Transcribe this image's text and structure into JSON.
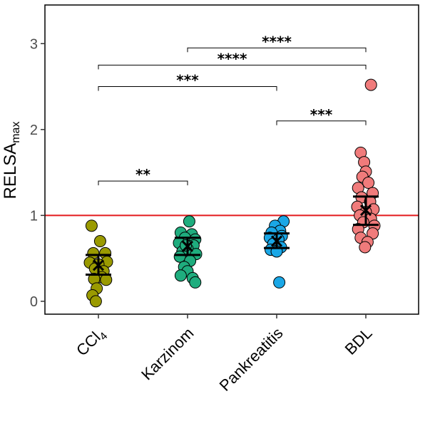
{
  "chart_data": {
    "type": "scatter",
    "subtype": "jitter-dot-plot-with-mean-sem",
    "title": "",
    "ylabel": "RELSA",
    "ylabel_subscript": "max",
    "categories": [
      {
        "main": "CCl",
        "sub": "4"
      },
      {
        "main": "Karzinom",
        "sub": ""
      },
      {
        "main": "Pankreatitis",
        "sub": ""
      },
      {
        "main": "BDL",
        "sub": ""
      }
    ],
    "ylim": [
      -0.15,
      3.45
    ],
    "yticks": [
      {
        "value": 0,
        "label": "0"
      },
      {
        "value": 1,
        "label": "1"
      },
      {
        "value": 2,
        "label": "2"
      },
      {
        "value": 3,
        "label": "3"
      }
    ],
    "reference_line": {
      "y": 1,
      "color": "#e31a1c"
    },
    "grid": false,
    "legend": "none",
    "series": [
      {
        "group": "CCl4",
        "color": "#9a9a00",
        "points": [
          {
            "dx": -0.08,
            "y": 0.88
          },
          {
            "dx": 0.02,
            "y": 0.7
          },
          {
            "dx": 0.08,
            "y": 0.56
          },
          {
            "dx": -0.06,
            "y": 0.56
          },
          {
            "dx": 0.1,
            "y": 0.46
          },
          {
            "dx": -0.1,
            "y": 0.45
          },
          {
            "dx": 0.0,
            "y": 0.43
          },
          {
            "dx": -0.04,
            "y": 0.38
          },
          {
            "dx": 0.06,
            "y": 0.35
          },
          {
            "dx": 0.04,
            "y": 0.28
          },
          {
            "dx": -0.05,
            "y": 0.26
          },
          {
            "dx": 0.09,
            "y": 0.25
          },
          {
            "dx": -0.02,
            "y": 0.15
          },
          {
            "dx": -0.07,
            "y": 0.07
          },
          {
            "dx": -0.03,
            "y": 0.0
          }
        ],
        "mean": 0.42,
        "err_low": 0.31,
        "err_high": 0.54
      },
      {
        "group": "Karzinom",
        "color": "#1fad7e",
        "points": [
          {
            "dx": 0.02,
            "y": 0.93
          },
          {
            "dx": -0.08,
            "y": 0.8
          },
          {
            "dx": 0.05,
            "y": 0.78
          },
          {
            "dx": -0.03,
            "y": 0.74
          },
          {
            "dx": 0.09,
            "y": 0.72
          },
          {
            "dx": -0.1,
            "y": 0.68
          },
          {
            "dx": 0.07,
            "y": 0.65
          },
          {
            "dx": 0.0,
            "y": 0.61
          },
          {
            "dx": -0.06,
            "y": 0.58
          },
          {
            "dx": 0.1,
            "y": 0.55
          },
          {
            "dx": -0.09,
            "y": 0.52
          },
          {
            "dx": 0.03,
            "y": 0.47
          },
          {
            "dx": -0.04,
            "y": 0.4
          },
          {
            "dx": 0.0,
            "y": 0.35
          },
          {
            "dx": -0.08,
            "y": 0.3
          },
          {
            "dx": 0.06,
            "y": 0.27
          },
          {
            "dx": 0.09,
            "y": 0.22
          },
          {
            "dx": -0.02,
            "y": 0.65
          }
        ],
        "mean": 0.64,
        "err_low": 0.54,
        "err_high": 0.74
      },
      {
        "group": "Pankreatitis",
        "color": "#1aa7e6",
        "points": [
          {
            "dx": 0.08,
            "y": 0.93
          },
          {
            "dx": -0.02,
            "y": 0.88
          },
          {
            "dx": 0.04,
            "y": 0.82
          },
          {
            "dx": -0.06,
            "y": 0.8
          },
          {
            "dx": 0.06,
            "y": 0.76
          },
          {
            "dx": -0.08,
            "y": 0.74
          },
          {
            "dx": 0.02,
            "y": 0.72
          },
          {
            "dx": -0.04,
            "y": 0.67
          },
          {
            "dx": 0.05,
            "y": 0.63
          },
          {
            "dx": -0.07,
            "y": 0.6
          },
          {
            "dx": 0.0,
            "y": 0.58
          },
          {
            "dx": 0.03,
            "y": 0.22
          }
        ],
        "mean": 0.7,
        "err_low": 0.62,
        "err_high": 0.79
      },
      {
        "group": "BDL",
        "color": "#f07b7b",
        "points": [
          {
            "dx": 0.06,
            "y": 2.52
          },
          {
            "dx": -0.06,
            "y": 1.73
          },
          {
            "dx": -0.02,
            "y": 1.62
          },
          {
            "dx": 0.0,
            "y": 1.51
          },
          {
            "dx": -0.04,
            "y": 1.45
          },
          {
            "dx": 0.03,
            "y": 1.38
          },
          {
            "dx": -0.09,
            "y": 1.32
          },
          {
            "dx": 0.08,
            "y": 1.26
          },
          {
            "dx": -0.05,
            "y": 1.21
          },
          {
            "dx": 0.05,
            "y": 1.16
          },
          {
            "dx": -0.1,
            "y": 1.1
          },
          {
            "dx": 0.09,
            "y": 1.07
          },
          {
            "dx": 0.0,
            "y": 1.04
          },
          {
            "dx": -0.07,
            "y": 1.0
          },
          {
            "dx": 0.06,
            "y": 0.96
          },
          {
            "dx": -0.03,
            "y": 0.92
          },
          {
            "dx": 0.1,
            "y": 0.88
          },
          {
            "dx": -0.09,
            "y": 0.84
          },
          {
            "dx": 0.08,
            "y": 0.79
          },
          {
            "dx": -0.06,
            "y": 0.74
          },
          {
            "dx": 0.02,
            "y": 0.69
          },
          {
            "dx": -0.01,
            "y": 0.63
          }
        ],
        "mean": 1.06,
        "err_low": 0.89,
        "err_high": 1.22
      }
    ],
    "significance": [
      {
        "from": 0,
        "to": 1,
        "y": 1.4,
        "label": "**"
      },
      {
        "from": 0,
        "to": 2,
        "y": 2.5,
        "label": "***"
      },
      {
        "from": 0,
        "to": 3,
        "y": 2.75,
        "label": "****"
      },
      {
        "from": 1,
        "to": 3,
        "y": 2.95,
        "label": "****"
      },
      {
        "from": 2,
        "to": 3,
        "y": 2.1,
        "label": "***"
      }
    ]
  }
}
